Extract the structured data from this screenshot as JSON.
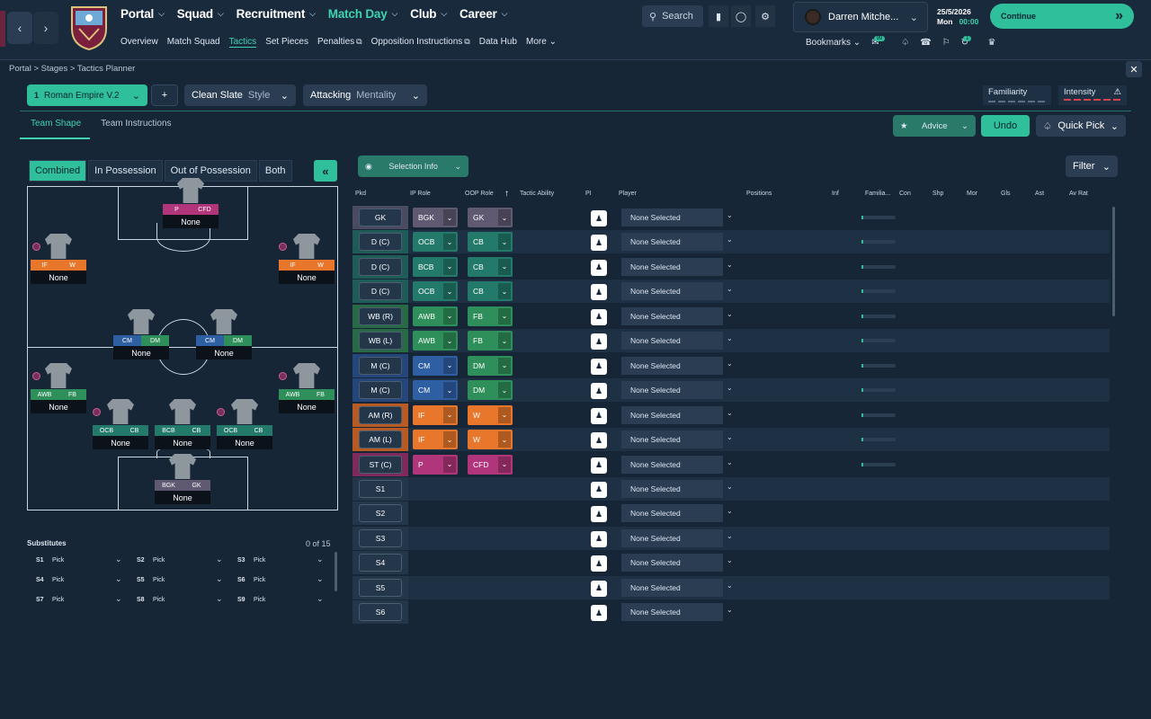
{
  "nav": {
    "main": [
      {
        "label": "Portal",
        "active": false
      },
      {
        "label": "Squad",
        "active": false
      },
      {
        "label": "Recruitment",
        "active": false
      },
      {
        "label": "Match Day",
        "active": true
      },
      {
        "label": "Club",
        "active": false
      },
      {
        "label": "Career",
        "active": false
      }
    ],
    "sub": [
      {
        "label": "Overview",
        "active": false,
        "ext": false
      },
      {
        "label": "Match Squad",
        "active": false,
        "ext": false
      },
      {
        "label": "Tactics",
        "active": true,
        "ext": false
      },
      {
        "label": "Set Pieces",
        "active": false,
        "ext": false
      },
      {
        "label": "Penalties",
        "active": false,
        "ext": true
      },
      {
        "label": "Opposition Instructions",
        "active": false,
        "ext": true
      },
      {
        "label": "Data Hub",
        "active": false,
        "ext": false
      },
      {
        "label": "More",
        "active": false,
        "ext": false
      }
    ],
    "search_label": "Search",
    "manager": "Darren Mitche...",
    "date": "25/5/2026",
    "day": "Mon",
    "time": "00:00",
    "continue_label": "Continue",
    "bookmarks_label": "Bookmarks",
    "badge_inbox": "99",
    "badge_count": "1"
  },
  "panel": {
    "breadcrumb": "Portal > Stages > Tactics Planner",
    "tactic_num": "1",
    "tactic_name": "Roman Empire V.2",
    "style_value": "Clean Slate",
    "style_label": "Style",
    "mentality_value": "Attacking",
    "mentality_label": "Mentality",
    "familiarity_label": "Familiarity",
    "intensity_label": "Intensity",
    "tabs": [
      "Team Shape",
      "Team Instructions"
    ],
    "advice_label": "Advice",
    "undo_label": "Undo",
    "quickpick_label": "Quick Pick",
    "views": [
      "Combined",
      "In Possession",
      "Out of Possession",
      "Both"
    ],
    "selection_info_label": "Selection Info",
    "filter_label": "Filter"
  },
  "pitch": {
    "players": [
      {
        "ip": "P",
        "oop": "CFD",
        "ipc": "#b0357a",
        "oopc": "#b0357a",
        "name": "None"
      },
      {
        "ip": "IF",
        "oop": "W",
        "ipc": "#e8772b",
        "oopc": "#e8772b",
        "name": "None"
      },
      {
        "ip": "IF",
        "oop": "W",
        "ipc": "#e8772b",
        "oopc": "#e8772b",
        "name": "None"
      },
      {
        "ip": "CM",
        "oop": "DM",
        "ipc": "#2f5fa3",
        "oopc": "#2f8f5a",
        "name": "None"
      },
      {
        "ip": "CM",
        "oop": "DM",
        "ipc": "#2f5fa3",
        "oopc": "#2f8f5a",
        "name": "None"
      },
      {
        "ip": "AWB",
        "oop": "FB",
        "ipc": "#2f8f5a",
        "oopc": "#2f8f5a",
        "name": "None"
      },
      {
        "ip": "AWB",
        "oop": "FB",
        "ipc": "#2f8f5a",
        "oopc": "#2f8f5a",
        "name": "None"
      },
      {
        "ip": "OCB",
        "oop": "CB",
        "ipc": "#237a6a",
        "oopc": "#237a6a",
        "name": "None"
      },
      {
        "ip": "BCB",
        "oop": "CB",
        "ipc": "#237a6a",
        "oopc": "#237a6a",
        "name": "None"
      },
      {
        "ip": "OCB",
        "oop": "CB",
        "ipc": "#237a6a",
        "oopc": "#237a6a",
        "name": "None"
      },
      {
        "ip": "BGK",
        "oop": "GK",
        "ipc": "#5f5a72",
        "oopc": "#5f5a72",
        "name": "None"
      }
    ]
  },
  "subs": {
    "title": "Substitutes",
    "count": "0 of 15",
    "items": [
      {
        "k": "S1",
        "v": "Pick"
      },
      {
        "k": "S2",
        "v": "Pick"
      },
      {
        "k": "S3",
        "v": "Pick"
      },
      {
        "k": "S4",
        "v": "Pick"
      },
      {
        "k": "S5",
        "v": "Pick"
      },
      {
        "k": "S6",
        "v": "Pick"
      },
      {
        "k": "S7",
        "v": "Pick"
      },
      {
        "k": "S8",
        "v": "Pick"
      },
      {
        "k": "S9",
        "v": "Pick"
      }
    ]
  },
  "table": {
    "headers": [
      "Pkd",
      "IP Role",
      "OOP Role",
      "Tactic Ability",
      "PI",
      "Player",
      "Positions",
      "Inf",
      "Familia...",
      "Con",
      "Shp",
      "Mor",
      "Gls",
      "Ast",
      "Av Rat"
    ],
    "rows": [
      {
        "pkd": "GK",
        "ip": "BGK",
        "oop": "GK",
        "band": "#4a4a62",
        "ipc": "#5f5a72",
        "oopc": "#5f5a72",
        "player": "None Selected"
      },
      {
        "pkd": "D (C)",
        "ip": "OCB",
        "oop": "CB",
        "band": "#1f5c58",
        "ipc": "#237a6a",
        "oopc": "#237a6a",
        "player": "None Selected"
      },
      {
        "pkd": "D (C)",
        "ip": "BCB",
        "oop": "CB",
        "band": "#1f5c58",
        "ipc": "#237a6a",
        "oopc": "#237a6a",
        "player": "None Selected"
      },
      {
        "pkd": "D (C)",
        "ip": "OCB",
        "oop": "CB",
        "band": "#1f5c58",
        "ipc": "#237a6a",
        "oopc": "#237a6a",
        "player": "None Selected"
      },
      {
        "pkd": "WB (R)",
        "ip": "AWB",
        "oop": "FB",
        "band": "#286a45",
        "ipc": "#2f8f5a",
        "oopc": "#2f8f5a",
        "player": "None Selected"
      },
      {
        "pkd": "WB (L)",
        "ip": "AWB",
        "oop": "FB",
        "band": "#286a45",
        "ipc": "#2f8f5a",
        "oopc": "#2f8f5a",
        "player": "None Selected"
      },
      {
        "pkd": "M (C)",
        "ip": "CM",
        "oop": "DM",
        "band": "#24467a",
        "ipc": "#2f5fa3",
        "oopc": "#2f8f5a",
        "player": "None Selected"
      },
      {
        "pkd": "M (C)",
        "ip": "CM",
        "oop": "DM",
        "band": "#24467a",
        "ipc": "#2f5fa3",
        "oopc": "#2f8f5a",
        "player": "None Selected"
      },
      {
        "pkd": "AM (R)",
        "ip": "IF",
        "oop": "W",
        "band": "#b85a24",
        "ipc": "#e8772b",
        "oopc": "#e8772b",
        "player": "None Selected"
      },
      {
        "pkd": "AM (L)",
        "ip": "IF",
        "oop": "W",
        "band": "#b85a24",
        "ipc": "#e8772b",
        "oopc": "#e8772b",
        "player": "None Selected"
      },
      {
        "pkd": "ST (C)",
        "ip": "P",
        "oop": "CFD",
        "band": "#7e2a5c",
        "ipc": "#b0357a",
        "oopc": "#b0357a",
        "player": "None Selected"
      },
      {
        "pkd": "S1",
        "player": "None Selected"
      },
      {
        "pkd": "S2",
        "player": "None Selected"
      },
      {
        "pkd": "S3",
        "player": "None Selected"
      },
      {
        "pkd": "S4",
        "player": "None Selected"
      },
      {
        "pkd": "S5",
        "player": "None Selected"
      },
      {
        "pkd": "S6",
        "player": "None Selected"
      }
    ]
  }
}
